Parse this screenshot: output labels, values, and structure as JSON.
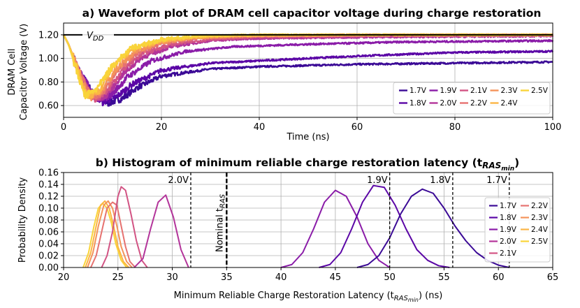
{
  "chart_data": [
    {
      "type": "line",
      "title": "a) Waveform plot of DRAM cell capacitor voltage during charge restoration",
      "xlabel": "Time (ns)",
      "ylabel_line1": "DRAM Cell",
      "ylabel_line2": "Capacitor Voltage (V)",
      "xlim": [
        0,
        100
      ],
      "ylim": [
        0.5,
        1.3
      ],
      "xticks": [
        "0",
        "20",
        "40",
        "60",
        "80",
        "100"
      ],
      "xtick_values": [
        0,
        20,
        40,
        60,
        80,
        100
      ],
      "yticks": [
        "0.60",
        "0.80",
        "1.00",
        "1.20"
      ],
      "ytick_values": [
        0.6,
        0.8,
        1.0,
        1.2
      ],
      "grid": true,
      "legend_position": "bottom-right",
      "vdd_label": "V",
      "vdd_sub": "DD",
      "vdd_value": 1.2,
      "series": [
        {
          "name": "1.7V",
          "color": "#3b0a96",
          "min_t": 9.0,
          "min_v": 0.62,
          "t": [
            0,
            1,
            3,
            6,
            9,
            12,
            15,
            20,
            30,
            40,
            60,
            80,
            100
          ],
          "v": [
            1.2,
            1.12,
            0.9,
            0.7,
            0.62,
            0.66,
            0.75,
            0.85,
            0.91,
            0.93,
            0.95,
            0.96,
            0.97
          ]
        },
        {
          "name": "1.8V",
          "color": "#5b06a6",
          "min_t": 8.0,
          "min_v": 0.63,
          "t": [
            0,
            1,
            3,
            6,
            8,
            11,
            14,
            20,
            30,
            40,
            60,
            80,
            100
          ],
          "v": [
            1.2,
            1.12,
            0.9,
            0.7,
            0.63,
            0.68,
            0.78,
            0.9,
            0.96,
            0.98,
            1.02,
            1.05,
            1.06
          ]
        },
        {
          "name": "1.9V",
          "color": "#8a1ca8",
          "min_t": 7.5,
          "min_v": 0.64,
          "t": [
            0,
            1,
            3,
            6,
            7.5,
            10,
            13,
            18,
            25,
            35,
            50,
            70,
            100
          ],
          "v": [
            1.2,
            1.12,
            0.9,
            0.7,
            0.64,
            0.7,
            0.84,
            0.98,
            1.06,
            1.1,
            1.12,
            1.14,
            1.15
          ]
        },
        {
          "name": "2.0V",
          "color": "#b3349a",
          "min_t": 7.0,
          "min_v": 0.65,
          "t": [
            0,
            1,
            3,
            5,
            7,
            9,
            12,
            16,
            22,
            30,
            40,
            60,
            100
          ],
          "v": [
            1.2,
            1.12,
            0.9,
            0.72,
            0.65,
            0.7,
            0.86,
            1.01,
            1.1,
            1.15,
            1.17,
            1.18,
            1.19
          ]
        },
        {
          "name": "2.1V",
          "color": "#d25484",
          "min_t": 6.5,
          "min_v": 0.66,
          "t": [
            0,
            1,
            3,
            5,
            6.5,
            9,
            12,
            16,
            22,
            30,
            40,
            60,
            100
          ],
          "v": [
            1.2,
            1.12,
            0.9,
            0.72,
            0.66,
            0.73,
            0.9,
            1.04,
            1.12,
            1.16,
            1.18,
            1.19,
            1.2
          ]
        },
        {
          "name": "2.2V",
          "color": "#e67270",
          "min_t": 6.0,
          "min_v": 0.665,
          "t": [
            0,
            1,
            3,
            5,
            6,
            8.5,
            11,
            15,
            20,
            28,
            40,
            60,
            100
          ],
          "v": [
            1.2,
            1.12,
            0.9,
            0.72,
            0.665,
            0.73,
            0.9,
            1.05,
            1.13,
            1.17,
            1.19,
            1.2,
            1.2
          ]
        },
        {
          "name": "2.3V",
          "color": "#f4935a",
          "min_t": 5.5,
          "min_v": 0.67,
          "t": [
            0,
            1,
            3,
            4.5,
            5.5,
            8,
            11,
            15,
            20,
            28,
            40,
            60,
            100
          ],
          "v": [
            1.2,
            1.12,
            0.9,
            0.74,
            0.67,
            0.74,
            0.92,
            1.07,
            1.14,
            1.18,
            1.19,
            1.2,
            1.2
          ]
        },
        {
          "name": "2.4V",
          "color": "#fbb545",
          "min_t": 5.0,
          "min_v": 0.675,
          "t": [
            0,
            1,
            3,
            4,
            5,
            7.5,
            10,
            14,
            20,
            28,
            40,
            60,
            100
          ],
          "v": [
            1.2,
            1.12,
            0.9,
            0.76,
            0.675,
            0.74,
            0.92,
            1.08,
            1.15,
            1.18,
            1.2,
            1.2,
            1.2
          ]
        },
        {
          "name": "2.5V",
          "color": "#f9d43a",
          "min_t": 4.5,
          "min_v": 0.68,
          "t": [
            0,
            1,
            2.5,
            3.5,
            4.5,
            7,
            10,
            14,
            20,
            28,
            40,
            60,
            100
          ],
          "v": [
            1.2,
            1.12,
            0.92,
            0.78,
            0.68,
            0.75,
            0.94,
            1.09,
            1.16,
            1.19,
            1.2,
            1.2,
            1.2
          ]
        }
      ],
      "legend_order": [
        "1.7V",
        "1.8V",
        "1.9V",
        "2.0V",
        "2.1V",
        "2.2V",
        "2.3V",
        "2.4V",
        "2.5V"
      ]
    },
    {
      "type": "line",
      "title": "b) Histogram of minimum reliable charge restoration latency (t",
      "title_sub": "RAS",
      "title_subsub": "min",
      "title_end": ")",
      "xlabel": "Minimum Reliable Charge Restoration Latency (t",
      "xlabel_sub": "RAS",
      "xlabel_subsub": "min",
      "xlabel_end": ") (ns)",
      "ylabel": "Probability Density",
      "xlim": [
        20,
        65
      ],
      "ylim": [
        0,
        0.16
      ],
      "xticks": [
        "20",
        "25",
        "30",
        "35",
        "40",
        "45",
        "50",
        "55",
        "60",
        "65"
      ],
      "xtick_values": [
        20,
        25,
        30,
        35,
        40,
        45,
        50,
        55,
        60,
        65
      ],
      "yticks": [
        "0.00",
        "0.02",
        "0.04",
        "0.06",
        "0.08",
        "0.10",
        "0.12",
        "0.14",
        "0.16"
      ],
      "ytick_values": [
        0,
        0.02,
        0.04,
        0.06,
        0.08,
        0.1,
        0.12,
        0.14,
        0.16
      ],
      "grid": true,
      "legend_position": "right",
      "nominal_label": "Nominal t",
      "nominal_sub": "RAS",
      "nominal_x": 35,
      "vlines": [
        {
          "label": "2.0V",
          "x": 31.7
        },
        {
          "label": "1.9V",
          "x": 50.0
        },
        {
          "label": "1.8V",
          "x": 55.8
        },
        {
          "label": "1.7V",
          "x": 61.0
        }
      ],
      "series": [
        {
          "name": "1.7V",
          "color": "#3b0a96",
          "x": [
            47,
            48,
            49,
            50,
            51,
            52,
            53,
            54,
            55,
            56,
            57,
            58,
            59,
            60,
            61
          ],
          "y": [
            0.0,
            0.005,
            0.02,
            0.05,
            0.09,
            0.12,
            0.132,
            0.125,
            0.1,
            0.07,
            0.045,
            0.025,
            0.012,
            0.004,
            0.0
          ]
        },
        {
          "name": "1.8V",
          "color": "#5b06a6",
          "x": [
            43.5,
            44.5,
            45.5,
            46.5,
            47.5,
            48.5,
            49.5,
            50.5,
            51.5,
            52.5,
            53.5,
            54.5,
            55.5
          ],
          "y": [
            0.0,
            0.005,
            0.025,
            0.065,
            0.11,
            0.138,
            0.135,
            0.105,
            0.065,
            0.03,
            0.012,
            0.003,
            0.0
          ]
        },
        {
          "name": "1.9V",
          "color": "#8a1ca8",
          "x": [
            40,
            41,
            42,
            43,
            44,
            45,
            46,
            47,
            48,
            49,
            50
          ],
          "y": [
            0.0,
            0.005,
            0.025,
            0.065,
            0.11,
            0.13,
            0.12,
            0.085,
            0.04,
            0.012,
            0.0
          ]
        },
        {
          "name": "2.0V",
          "color": "#b3349a",
          "x": [
            26.5,
            27.3,
            28,
            28.7,
            29.4,
            30.1,
            30.8,
            31.5
          ],
          "y": [
            0.0,
            0.015,
            0.065,
            0.11,
            0.122,
            0.085,
            0.03,
            0.0
          ]
        },
        {
          "name": "2.1V",
          "color": "#d25484",
          "x": [
            23.5,
            24,
            24.5,
            25,
            25.3,
            25.7,
            26.2,
            26.7,
            27.2,
            27.7
          ],
          "y": [
            0.0,
            0.02,
            0.06,
            0.12,
            0.136,
            0.13,
            0.09,
            0.045,
            0.012,
            0.0
          ]
        },
        {
          "name": "2.2V",
          "color": "#e67270",
          "x": [
            22.5,
            23,
            23.5,
            24,
            24.5,
            24.9,
            25.3,
            25.7,
            26.1,
            26.6
          ],
          "y": [
            0.0,
            0.02,
            0.06,
            0.1,
            0.11,
            0.105,
            0.07,
            0.035,
            0.01,
            0.0
          ]
        },
        {
          "name": "2.3V",
          "color": "#f4935a",
          "x": [
            22.2,
            22.7,
            23.2,
            23.7,
            24.1,
            24.5,
            24.9,
            25.3,
            25.8,
            26.3
          ],
          "y": [
            0.0,
            0.025,
            0.07,
            0.105,
            0.112,
            0.1,
            0.07,
            0.035,
            0.01,
            0.0
          ]
        },
        {
          "name": "2.4V",
          "color": "#fbb545",
          "x": [
            22,
            22.5,
            23,
            23.4,
            23.8,
            24.2,
            24.6,
            25,
            25.5,
            26
          ],
          "y": [
            0.0,
            0.025,
            0.07,
            0.105,
            0.112,
            0.1,
            0.07,
            0.035,
            0.01,
            0.0
          ]
        },
        {
          "name": "2.5V",
          "color": "#f9d43a",
          "x": [
            21.8,
            22.3,
            22.8,
            23.2,
            23.6,
            24,
            24.4,
            24.8,
            25.3,
            25.8
          ],
          "y": [
            0.0,
            0.025,
            0.07,
            0.1,
            0.108,
            0.1,
            0.075,
            0.04,
            0.012,
            0.0
          ]
        }
      ],
      "legend_order": [
        "1.7V",
        "1.8V",
        "1.9V",
        "2.0V",
        "2.1V",
        "2.2V",
        "2.3V",
        "2.4V",
        "2.5V"
      ]
    }
  ]
}
